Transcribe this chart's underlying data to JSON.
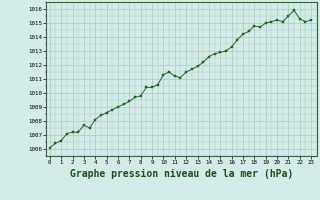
{
  "x": [
    0,
    0.5,
    1,
    1.5,
    2,
    2.5,
    3,
    3.5,
    4,
    4.5,
    5,
    5.5,
    6,
    6.5,
    7,
    7.5,
    8,
    8.5,
    9,
    9.5,
    10,
    10.5,
    11,
    11.5,
    12,
    12.5,
    13,
    13.5,
    14,
    14.5,
    15,
    15.5,
    16,
    16.5,
    17,
    17.5,
    18,
    18.5,
    19,
    19.5,
    20,
    20.5,
    21,
    21.5,
    22,
    22.5,
    23
  ],
  "y": [
    1006.1,
    1006.4,
    1006.6,
    1007.1,
    1007.2,
    1007.2,
    1007.7,
    1007.5,
    1008.1,
    1008.4,
    1008.6,
    1008.8,
    1009.0,
    1009.2,
    1009.4,
    1009.7,
    1009.8,
    1010.4,
    1010.4,
    1010.6,
    1011.3,
    1011.5,
    1011.2,
    1011.1,
    1011.5,
    1011.7,
    1011.9,
    1012.2,
    1012.6,
    1012.8,
    1012.9,
    1013.0,
    1013.3,
    1013.8,
    1014.2,
    1014.4,
    1014.8,
    1014.7,
    1015.0,
    1015.1,
    1015.2,
    1015.1,
    1015.5,
    1015.9,
    1015.3,
    1015.1,
    1015.2
  ],
  "line_color": "#1a6b1a",
  "marker_color": "#1a6b1a",
  "bg_color": "#d4ece8",
  "grid_color": "#b0c8c4",
  "xlabel": "Graphe pression niveau de la mer (hPa)",
  "xlabel_fontsize": 7,
  "ylabel_ticks": [
    1006,
    1007,
    1008,
    1009,
    1010,
    1011,
    1012,
    1013,
    1014,
    1015,
    1016
  ],
  "xticks": [
    0,
    1,
    2,
    3,
    4,
    5,
    6,
    7,
    8,
    9,
    10,
    11,
    12,
    13,
    14,
    15,
    16,
    17,
    18,
    19,
    20,
    21,
    22,
    23
  ],
  "xlim": [
    -0.3,
    23.5
  ],
  "ylim": [
    1005.5,
    1016.5
  ]
}
